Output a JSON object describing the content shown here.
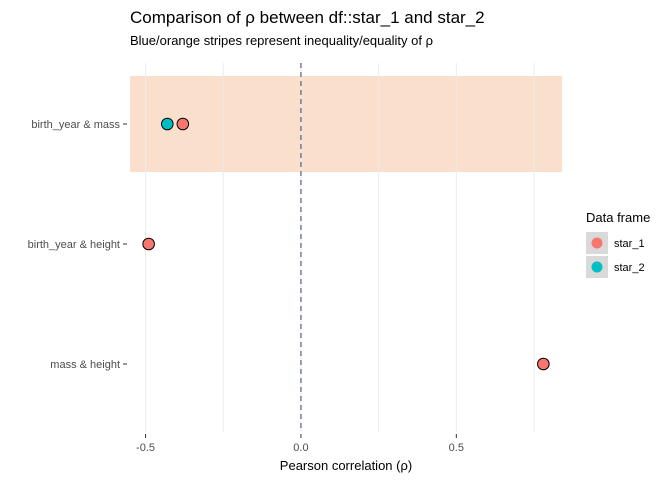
{
  "chart_data": {
    "type": "scatter",
    "title": "Comparison of ρ between df::star_1 and star_2",
    "subtitle": "Blue/orange stripes represent inequality/equality of ρ",
    "xlabel": "Pearson correlation (ρ)",
    "ylabel": "",
    "xlim": [
      -0.55,
      0.84
    ],
    "x_ticks": [
      -0.5,
      0.0,
      0.5
    ],
    "x_tick_labels": [
      "-0.5",
      "0.0",
      "0.5"
    ],
    "reference_line_x": 0,
    "categories": [
      "birth_year & mass",
      "birth_year & height",
      "mass & height"
    ],
    "stripes": [
      {
        "category": "birth_year & mass",
        "color": "#fbdfcd"
      }
    ],
    "series": [
      {
        "name": "star_1",
        "color": "#f8766d",
        "values": [
          -0.38,
          -0.49,
          0.78
        ]
      },
      {
        "name": "star_2",
        "color": "#00bfc4",
        "values": [
          -0.43,
          null,
          null
        ]
      }
    ],
    "legend": {
      "title": "Data frame",
      "position": "right",
      "entries": [
        "star_1",
        "star_2"
      ]
    },
    "grid": true
  }
}
